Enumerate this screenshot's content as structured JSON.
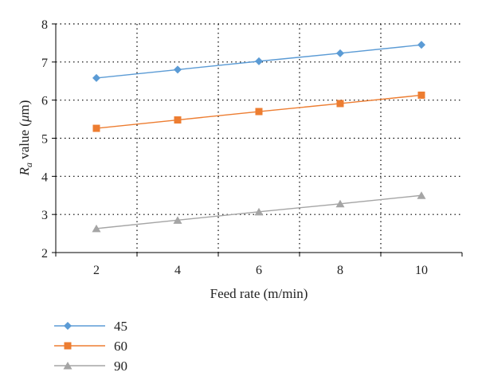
{
  "chart_data": {
    "type": "line",
    "x": [
      2,
      4,
      6,
      8,
      10
    ],
    "series": [
      {
        "name": "45",
        "values": [
          6.58,
          6.8,
          7.02,
          7.23,
          7.45
        ],
        "color": "#5b9bd5",
        "marker": "diamond"
      },
      {
        "name": "60",
        "values": [
          5.26,
          5.48,
          5.7,
          5.91,
          6.13
        ],
        "color": "#ed7d31",
        "marker": "square"
      },
      {
        "name": "90",
        "values": [
          2.63,
          2.85,
          3.07,
          3.28,
          3.5
        ],
        "color": "#a5a5a5",
        "marker": "triangle"
      }
    ],
    "xlabel": "Feed rate (m/min)",
    "ylabel": {
      "main": "R",
      "sub": "a",
      "rest": " value (",
      "mu": "μ",
      "unit": "m)"
    },
    "xlim": [
      1,
      11
    ],
    "ylim": [
      2,
      8
    ],
    "xticks": [
      "2",
      "4",
      "6",
      "8",
      "10"
    ],
    "yticks": [
      "2",
      "3",
      "4",
      "5",
      "6",
      "7",
      "8"
    ],
    "grid": true,
    "legend_position": "bottom-left"
  }
}
